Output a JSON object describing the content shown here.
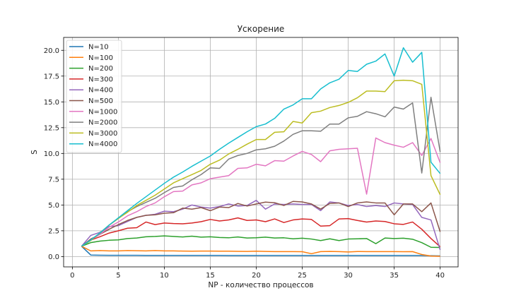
{
  "chart_data": {
    "type": "line",
    "title": "Ускорение",
    "xlabel": "NP - количество процессов",
    "ylabel": "S",
    "xlim": [
      -0.95,
      41.95
    ],
    "ylim": [
      -1.0,
      21.25
    ],
    "xticks": [
      0,
      5,
      10,
      15,
      20,
      25,
      30,
      35,
      40
    ],
    "yticks": [
      0.0,
      2.5,
      5.0,
      7.5,
      10.0,
      12.5,
      15.0,
      17.5,
      20.0
    ],
    "ytick_labels": [
      "0.0",
      "2.5",
      "5.0",
      "7.5",
      "10.0",
      "12.5",
      "15.0",
      "17.5",
      "20.0"
    ],
    "grid": true,
    "legend_position": "upper-left",
    "x": [
      1,
      2,
      3,
      4,
      5,
      6,
      7,
      8,
      9,
      10,
      11,
      12,
      13,
      14,
      15,
      16,
      17,
      18,
      19,
      20,
      21,
      22,
      23,
      24,
      25,
      26,
      27,
      28,
      29,
      30,
      31,
      32,
      33,
      34,
      35,
      36,
      37,
      38,
      39,
      40
    ],
    "series": [
      {
        "name": "N=10",
        "color": "#1f77b4",
        "values": [
          1.0,
          0.15,
          0.13,
          0.12,
          0.12,
          0.12,
          0.12,
          0.11,
          0.11,
          0.11,
          0.11,
          0.11,
          0.11,
          0.11,
          0.11,
          0.11,
          0.1,
          0.1,
          0.1,
          0.1,
          0.1,
          0.1,
          0.1,
          0.1,
          0.1,
          0.1,
          0.1,
          0.1,
          0.1,
          0.1,
          0.1,
          0.1,
          0.1,
          0.1,
          0.1,
          0.1,
          0.1,
          0.1,
          0.08,
          0.06
        ]
      },
      {
        "name": "N=100",
        "color": "#ff7f0e",
        "values": [
          1.0,
          0.55,
          0.58,
          0.55,
          0.55,
          0.58,
          0.57,
          0.55,
          0.58,
          0.55,
          0.55,
          0.53,
          0.52,
          0.53,
          0.53,
          0.52,
          0.52,
          0.51,
          0.5,
          0.52,
          0.5,
          0.48,
          0.48,
          0.48,
          0.47,
          0.28,
          0.48,
          0.5,
          0.48,
          0.45,
          0.49,
          0.48,
          0.48,
          0.48,
          0.48,
          0.47,
          0.48,
          0.2,
          0.05,
          0.03
        ]
      },
      {
        "name": "N=200",
        "color": "#2ca02c",
        "values": [
          1.0,
          1.35,
          1.5,
          1.58,
          1.62,
          1.75,
          1.8,
          1.92,
          1.95,
          2.0,
          1.95,
          1.9,
          1.98,
          1.88,
          1.92,
          1.85,
          1.82,
          1.9,
          1.8,
          1.82,
          1.88,
          1.8,
          1.82,
          1.72,
          1.78,
          1.7,
          1.55,
          1.72,
          1.55,
          1.7,
          1.72,
          1.75,
          1.25,
          1.8,
          1.75,
          1.78,
          1.68,
          1.35,
          0.9,
          0.88
        ]
      },
      {
        "name": "N=300",
        "color": "#d62728",
        "values": [
          1.0,
          1.6,
          1.92,
          2.28,
          2.5,
          2.75,
          2.8,
          3.35,
          3.1,
          3.25,
          3.2,
          3.18,
          3.25,
          3.38,
          3.6,
          3.45,
          3.55,
          3.75,
          3.5,
          3.55,
          3.38,
          3.65,
          3.3,
          3.55,
          3.65,
          3.6,
          2.95,
          3.0,
          3.65,
          3.68,
          3.5,
          3.35,
          3.45,
          3.4,
          3.18,
          3.12,
          3.35,
          2.65,
          1.75,
          0.95
        ]
      },
      {
        "name": "N=400",
        "color": "#9467bd",
        "values": [
          1.0,
          2.05,
          2.35,
          2.9,
          3.0,
          3.4,
          3.8,
          4.0,
          4.1,
          4.4,
          4.35,
          4.6,
          5.0,
          4.8,
          4.7,
          4.85,
          5.1,
          4.9,
          4.95,
          5.45,
          4.6,
          5.1,
          5.05,
          5.1,
          5.05,
          5.05,
          4.45,
          5.3,
          5.2,
          4.95,
          5.05,
          4.85,
          4.95,
          4.85,
          5.2,
          5.1,
          5.05,
          3.8,
          3.55,
          0.65
        ]
      },
      {
        "name": "N=500",
        "color": "#8c564b",
        "values": [
          1.0,
          1.7,
          2.15,
          2.65,
          3.1,
          3.5,
          3.8,
          4.0,
          4.05,
          4.2,
          4.25,
          4.7,
          4.6,
          4.75,
          4.45,
          4.8,
          4.75,
          5.15,
          4.9,
          5.1,
          5.28,
          5.22,
          4.95,
          5.35,
          5.3,
          5.1,
          4.6,
          5.15,
          5.2,
          4.85,
          5.2,
          5.3,
          5.2,
          5.2,
          4.05,
          5.1,
          5.1,
          4.35,
          5.2,
          2.4
        ]
      },
      {
        "name": "N=1000",
        "color": "#e377c2",
        "values": [
          1.0,
          1.6,
          2.15,
          2.85,
          3.35,
          3.95,
          4.35,
          4.85,
          5.2,
          5.8,
          6.3,
          6.35,
          6.95,
          7.15,
          7.55,
          7.7,
          7.85,
          8.55,
          8.6,
          8.95,
          8.8,
          9.3,
          9.25,
          9.75,
          10.2,
          9.9,
          9.2,
          10.25,
          10.4,
          10.45,
          10.5,
          6.05,
          11.5,
          11.05,
          10.8,
          10.6,
          11.05,
          9.8,
          11.45,
          9.1
        ]
      },
      {
        "name": "N=2000",
        "color": "#7f7f7f",
        "values": [
          1.0,
          1.6,
          2.25,
          3.05,
          3.7,
          4.35,
          4.85,
          5.25,
          5.65,
          6.2,
          6.7,
          6.85,
          7.45,
          7.95,
          8.6,
          8.55,
          9.45,
          9.8,
          10.0,
          10.35,
          10.45,
          10.7,
          11.2,
          11.85,
          12.2,
          12.2,
          12.15,
          12.85,
          12.85,
          13.45,
          13.6,
          14.05,
          13.85,
          13.55,
          14.5,
          14.3,
          14.9,
          8.1,
          15.45,
          10.15
        ]
      },
      {
        "name": "N=3000",
        "color": "#bcbd22",
        "values": [
          1.0,
          1.55,
          2.3,
          3.05,
          3.7,
          4.3,
          4.95,
          5.45,
          5.95,
          6.55,
          7.15,
          7.55,
          7.95,
          8.35,
          8.95,
          9.35,
          9.95,
          10.4,
          10.9,
          11.35,
          11.35,
          12.05,
          12.1,
          13.1,
          12.95,
          13.95,
          14.1,
          14.45,
          14.65,
          14.95,
          15.4,
          16.05,
          16.05,
          16.0,
          17.05,
          17.1,
          17.05,
          16.7,
          7.85,
          6.0
        ]
      },
      {
        "name": "N=4000",
        "color": "#17becf",
        "values": [
          1.0,
          1.6,
          2.3,
          3.05,
          3.75,
          4.45,
          5.15,
          5.8,
          6.45,
          7.1,
          7.7,
          8.2,
          8.75,
          9.25,
          9.75,
          10.4,
          11.0,
          11.55,
          12.1,
          12.6,
          12.85,
          13.4,
          14.3,
          14.7,
          15.3,
          15.3,
          16.25,
          16.85,
          17.2,
          18.05,
          17.95,
          18.65,
          18.95,
          19.65,
          17.5,
          20.25,
          18.85,
          19.8,
          9.15,
          8.05
        ]
      }
    ]
  }
}
